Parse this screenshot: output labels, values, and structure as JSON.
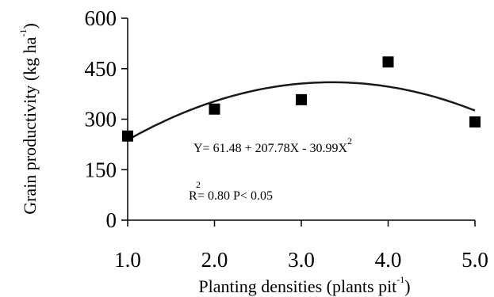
{
  "chart_data": {
    "type": "scatter",
    "xlabel": "Planting densities (plants pit",
    "xlabel_sup": "-1",
    "xlabel_close": ")",
    "ylabel": "Grain productivity (kg ha",
    "ylabel_sup": "-1",
    "ylabel_close": ")",
    "xlim": [
      1.0,
      5.0
    ],
    "ylim": [
      0,
      600
    ],
    "xticks": [
      "1.0",
      "2.0",
      "3.0",
      "4.0",
      "5.0"
    ],
    "xtick_values": [
      1,
      2,
      3,
      4,
      5
    ],
    "yticks": [
      "0",
      "150",
      "300",
      "450",
      "600"
    ],
    "ytick_values": [
      0,
      150,
      300,
      450,
      600
    ],
    "grid": false,
    "points": {
      "x": [
        1,
        2,
        3,
        4,
        5
      ],
      "y": [
        250,
        330,
        358,
        470,
        292
      ]
    },
    "fit": {
      "intercept": 61.48,
      "b1": 207.78,
      "b2": -30.99
    },
    "equation": "Y= 61.48 + 207.78X - 30.99X",
    "equation_sup": "2",
    "r2_label": "R",
    "r2_sup": "2",
    "r2_text": "= 0.80  P< 0.05",
    "colors": {
      "marker": "#000000",
      "curve": "#1a1a1a",
      "axis": "#000000"
    }
  }
}
